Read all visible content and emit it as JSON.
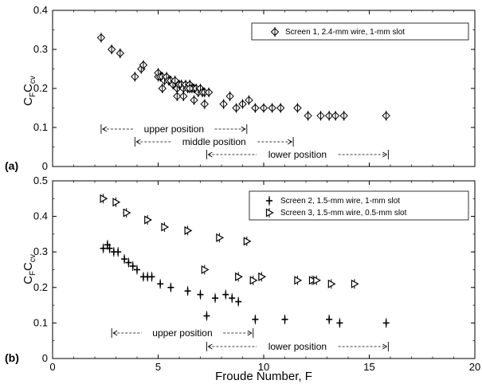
{
  "chart_data": [
    {
      "type": "scatter",
      "panel_label": "(a)",
      "xlim": [
        0,
        20
      ],
      "ylim": [
        0,
        0.4
      ],
      "xticks": [
        "0",
        "5",
        "10",
        "15",
        "20"
      ],
      "yticks": [
        "0",
        "0.1",
        "0.2",
        "0.3",
        "0.4"
      ],
      "ylabel": {
        "main": "C",
        "sub1": "F",
        "mid": "C",
        "sub2": "cv"
      },
      "legend_placement": "top-right",
      "series": [
        {
          "name": "Screen 1, 2.4-mm wire, 1-mm slot",
          "marker": "diamond",
          "x": [
            2.3,
            2.8,
            3.2,
            3.9,
            4.2,
            4.3,
            5.0,
            5.0,
            5.1,
            5.2,
            5.3,
            5.4,
            5.5,
            5.6,
            5.7,
            5.8,
            5.9,
            6.0,
            6.1,
            6.2,
            6.3,
            6.4,
            6.5,
            6.6,
            6.7,
            6.8,
            6.9,
            7.0,
            7.1,
            7.2,
            7.4,
            5.2,
            5.9,
            6.2,
            6.5,
            6.7,
            7.2,
            8.1,
            8.4,
            8.7,
            9.0,
            9.3,
            9.6,
            10.0,
            10.4,
            10.8,
            11.6,
            12.1,
            12.7,
            13.1,
            13.4,
            13.8,
            15.8
          ],
          "y": [
            0.33,
            0.3,
            0.29,
            0.23,
            0.25,
            0.26,
            0.23,
            0.24,
            0.23,
            0.23,
            0.22,
            0.23,
            0.22,
            0.22,
            0.21,
            0.22,
            0.2,
            0.21,
            0.21,
            0.2,
            0.21,
            0.2,
            0.21,
            0.2,
            0.2,
            0.2,
            0.19,
            0.2,
            0.19,
            0.19,
            0.19,
            0.2,
            0.18,
            0.18,
            0.2,
            0.17,
            0.16,
            0.16,
            0.18,
            0.15,
            0.16,
            0.17,
            0.15,
            0.15,
            0.15,
            0.15,
            0.15,
            0.13,
            0.13,
            0.13,
            0.13,
            0.13,
            0.13
          ]
        }
      ],
      "annotations": [
        {
          "text": "upper position",
          "range": [
            2.3,
            9.2
          ]
        },
        {
          "text": "middle position",
          "range": [
            3.9,
            11.4
          ]
        },
        {
          "text": "lower position",
          "range": [
            7.3,
            15.9
          ]
        }
      ]
    },
    {
      "type": "scatter",
      "panel_label": "(b)",
      "xlim": [
        0,
        20
      ],
      "ylim": [
        0,
        0.5
      ],
      "xticks": [
        "0",
        "5",
        "10",
        "15",
        "20"
      ],
      "yticks": [
        "0",
        "0.1",
        "0.2",
        "0.3",
        "0.4",
        "0.5"
      ],
      "xlabel": "Froude Number, F",
      "ylabel": {
        "main": "C",
        "sub1": "F",
        "mid": "C",
        "sub2": "cv"
      },
      "legend_placement": "top-right",
      "series": [
        {
          "name": "Screen 2, 1.5-mm wire, 1-mm slot",
          "marker": "plus",
          "x": [
            2.4,
            2.6,
            2.7,
            2.9,
            3.1,
            3.4,
            3.6,
            3.8,
            4.0,
            4.3,
            4.5,
            4.7,
            5.1,
            5.6,
            6.4,
            7.0,
            7.3,
            7.7,
            8.2,
            8.5,
            8.8,
            9.6,
            11.0,
            13.1,
            13.6,
            15.8
          ],
          "y": [
            0.31,
            0.32,
            0.31,
            0.3,
            0.3,
            0.28,
            0.27,
            0.26,
            0.25,
            0.23,
            0.23,
            0.23,
            0.21,
            0.2,
            0.19,
            0.18,
            0.12,
            0.17,
            0.18,
            0.17,
            0.16,
            0.11,
            0.11,
            0.11,
            0.1,
            0.1
          ]
        },
        {
          "name": "Screen 3, 1.5-mm wire, 0.5-mm slot",
          "marker": "triangle-right",
          "x": [
            2.4,
            3.0,
            3.5,
            4.5,
            5.3,
            6.4,
            7.2,
            7.9,
            8.8,
            9.2,
            9.5,
            9.9,
            11.6,
            12.3,
            12.5,
            13.2,
            14.3
          ],
          "y": [
            0.45,
            0.44,
            0.41,
            0.39,
            0.37,
            0.36,
            0.25,
            0.34,
            0.23,
            0.33,
            0.22,
            0.23,
            0.22,
            0.22,
            0.22,
            0.21,
            0.21
          ]
        }
      ],
      "annotations": [
        {
          "text": "upper position",
          "range": [
            2.8,
            9.5
          ]
        },
        {
          "text": "lower position",
          "range": [
            7.3,
            15.9
          ]
        }
      ]
    }
  ]
}
